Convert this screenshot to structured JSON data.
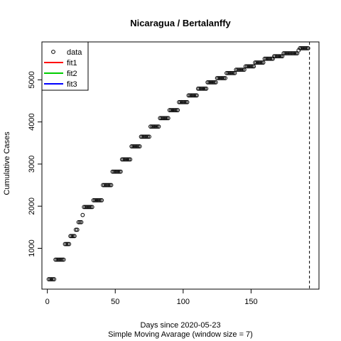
{
  "chart_data": {
    "type": "scatter",
    "title": "Nicaragua / Bertalanffy",
    "xlabel": "Days since 2020-05-23",
    "xlabel2": "Simple Moving Avarage (window size = 7)",
    "ylabel": "Cumulative Cases",
    "xlim": [
      -4,
      200
    ],
    "ylim": [
      30,
      5900
    ],
    "xticks": [
      0,
      50,
      100,
      150
    ],
    "yticks": [
      1000,
      2000,
      3000,
      4000,
      5000
    ],
    "grid": false,
    "legend_position": "top-left",
    "vline_x": 193,
    "legend": [
      {
        "label": "data",
        "kind": "point",
        "color": "#000000"
      },
      {
        "label": "fit1",
        "kind": "line",
        "color": "#ff0000"
      },
      {
        "label": "fit2",
        "kind": "line",
        "color": "#00cd00"
      },
      {
        "label": "fit3",
        "kind": "line",
        "color": "#0000ff"
      }
    ],
    "series": [
      {
        "values": [
          [
            1,
            265
          ],
          [
            2,
            265
          ],
          [
            3,
            265
          ],
          [
            4,
            265
          ],
          [
            5,
            265
          ],
          [
            6,
            730
          ],
          [
            7,
            730
          ],
          [
            8,
            730
          ],
          [
            9,
            730
          ],
          [
            10,
            730
          ],
          [
            11,
            730
          ],
          [
            12,
            730
          ],
          [
            13,
            1100
          ],
          [
            14,
            1100
          ],
          [
            15,
            1100
          ],
          [
            16,
            1100
          ],
          [
            17,
            1290
          ],
          [
            18,
            1290
          ],
          [
            19,
            1290
          ],
          [
            20,
            1290
          ],
          [
            21,
            1440
          ],
          [
            22,
            1440
          ],
          [
            23,
            1620
          ],
          [
            24,
            1620
          ],
          [
            25,
            1620
          ],
          [
            26,
            1790
          ],
          [
            27,
            1980
          ],
          [
            28,
            1980
          ],
          [
            29,
            1980
          ],
          [
            30,
            1980
          ],
          [
            31,
            1980
          ],
          [
            32,
            1980
          ],
          [
            33,
            1980
          ],
          [
            34,
            2140
          ],
          [
            35,
            2140
          ],
          [
            36,
            2140
          ],
          [
            37,
            2140
          ],
          [
            38,
            2140
          ],
          [
            39,
            2140
          ],
          [
            40,
            2140
          ],
          [
            41,
            2500
          ],
          [
            42,
            2500
          ],
          [
            43,
            2500
          ],
          [
            44,
            2500
          ],
          [
            45,
            2500
          ],
          [
            46,
            2500
          ],
          [
            47,
            2500
          ],
          [
            48,
            2820
          ],
          [
            49,
            2820
          ],
          [
            50,
            2820
          ],
          [
            51,
            2820
          ],
          [
            52,
            2820
          ],
          [
            53,
            2820
          ],
          [
            54,
            2820
          ],
          [
            55,
            3110
          ],
          [
            56,
            3110
          ],
          [
            57,
            3110
          ],
          [
            58,
            3110
          ],
          [
            59,
            3110
          ],
          [
            60,
            3110
          ],
          [
            61,
            3110
          ],
          [
            62,
            3420
          ],
          [
            63,
            3420
          ],
          [
            64,
            3420
          ],
          [
            65,
            3420
          ],
          [
            66,
            3420
          ],
          [
            67,
            3420
          ],
          [
            68,
            3420
          ],
          [
            69,
            3650
          ],
          [
            70,
            3650
          ],
          [
            71,
            3650
          ],
          [
            72,
            3650
          ],
          [
            73,
            3650
          ],
          [
            74,
            3650
          ],
          [
            75,
            3650
          ],
          [
            76,
            3890
          ],
          [
            77,
            3890
          ],
          [
            78,
            3890
          ],
          [
            79,
            3890
          ],
          [
            80,
            3890
          ],
          [
            81,
            3890
          ],
          [
            82,
            3890
          ],
          [
            83,
            4090
          ],
          [
            84,
            4090
          ],
          [
            85,
            4090
          ],
          [
            86,
            4090
          ],
          [
            87,
            4090
          ],
          [
            88,
            4090
          ],
          [
            89,
            4090
          ],
          [
            90,
            4280
          ],
          [
            91,
            4280
          ],
          [
            92,
            4280
          ],
          [
            93,
            4280
          ],
          [
            94,
            4280
          ],
          [
            95,
            4280
          ],
          [
            96,
            4280
          ],
          [
            97,
            4470
          ],
          [
            98,
            4470
          ],
          [
            99,
            4470
          ],
          [
            100,
            4470
          ],
          [
            101,
            4470
          ],
          [
            102,
            4470
          ],
          [
            103,
            4470
          ],
          [
            104,
            4630
          ],
          [
            105,
            4630
          ],
          [
            106,
            4630
          ],
          [
            107,
            4630
          ],
          [
            108,
            4630
          ],
          [
            109,
            4630
          ],
          [
            110,
            4630
          ],
          [
            111,
            4790
          ],
          [
            112,
            4790
          ],
          [
            113,
            4790
          ],
          [
            114,
            4790
          ],
          [
            115,
            4790
          ],
          [
            116,
            4790
          ],
          [
            117,
            4790
          ],
          [
            118,
            4940
          ],
          [
            119,
            4940
          ],
          [
            120,
            4940
          ],
          [
            121,
            4940
          ],
          [
            122,
            4940
          ],
          [
            123,
            4940
          ],
          [
            124,
            4940
          ],
          [
            125,
            5040
          ],
          [
            126,
            5040
          ],
          [
            127,
            5040
          ],
          [
            128,
            5040
          ],
          [
            129,
            5040
          ],
          [
            130,
            5040
          ],
          [
            131,
            5040
          ],
          [
            132,
            5160
          ],
          [
            133,
            5160
          ],
          [
            134,
            5160
          ],
          [
            135,
            5160
          ],
          [
            136,
            5160
          ],
          [
            137,
            5160
          ],
          [
            138,
            5160
          ],
          [
            139,
            5240
          ],
          [
            140,
            5240
          ],
          [
            141,
            5240
          ],
          [
            142,
            5240
          ],
          [
            143,
            5240
          ],
          [
            144,
            5240
          ],
          [
            145,
            5240
          ],
          [
            146,
            5320
          ],
          [
            147,
            5320
          ],
          [
            148,
            5320
          ],
          [
            149,
            5320
          ],
          [
            150,
            5320
          ],
          [
            151,
            5320
          ],
          [
            152,
            5320
          ],
          [
            153,
            5410
          ],
          [
            154,
            5410
          ],
          [
            155,
            5410
          ],
          [
            156,
            5410
          ],
          [
            157,
            5410
          ],
          [
            158,
            5410
          ],
          [
            159,
            5410
          ],
          [
            160,
            5500
          ],
          [
            161,
            5500
          ],
          [
            162,
            5500
          ],
          [
            163,
            5500
          ],
          [
            164,
            5500
          ],
          [
            165,
            5500
          ],
          [
            166,
            5500
          ],
          [
            167,
            5560
          ],
          [
            168,
            5560
          ],
          [
            169,
            5560
          ],
          [
            170,
            5560
          ],
          [
            171,
            5560
          ],
          [
            172,
            5560
          ],
          [
            173,
            5560
          ],
          [
            174,
            5630
          ],
          [
            175,
            5630
          ],
          [
            176,
            5630
          ],
          [
            177,
            5630
          ],
          [
            178,
            5630
          ],
          [
            179,
            5630
          ],
          [
            180,
            5630
          ],
          [
            181,
            5630
          ],
          [
            182,
            5630
          ],
          [
            183,
            5630
          ],
          [
            184,
            5630
          ],
          [
            185,
            5700
          ],
          [
            186,
            5750
          ],
          [
            187,
            5750
          ],
          [
            188,
            5750
          ],
          [
            189,
            5750
          ],
          [
            190,
            5750
          ],
          [
            191,
            5750
          ],
          [
            192,
            5750
          ]
        ]
      }
    ]
  }
}
